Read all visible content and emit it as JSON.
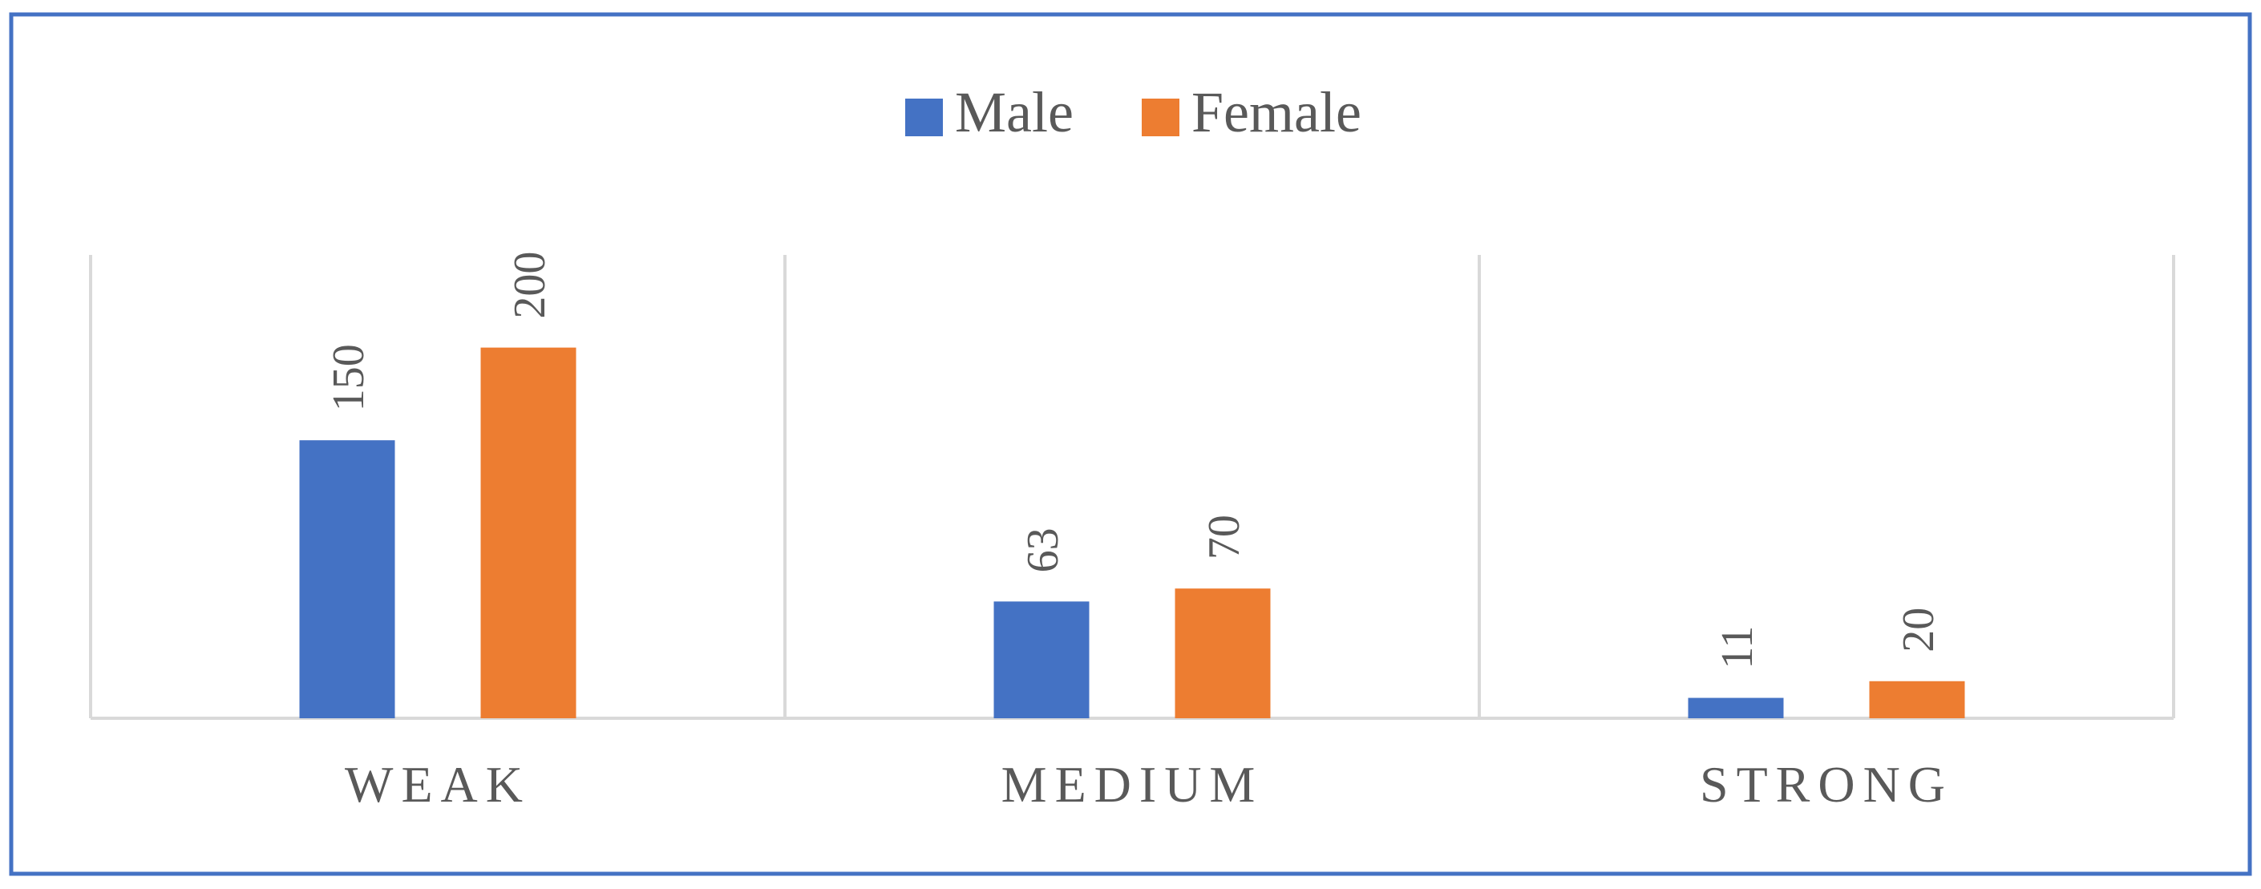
{
  "chart_data": {
    "type": "bar",
    "categories": [
      "WEAK",
      "MEDIUM",
      "STRONG"
    ],
    "series": [
      {
        "name": "Male",
        "color": "#4472c4",
        "values": [
          150,
          63,
          11
        ]
      },
      {
        "name": "Female",
        "color": "#ed7d31",
        "values": [
          200,
          70,
          20
        ]
      }
    ],
    "ylim": [
      0,
      250
    ],
    "legend": "top"
  }
}
